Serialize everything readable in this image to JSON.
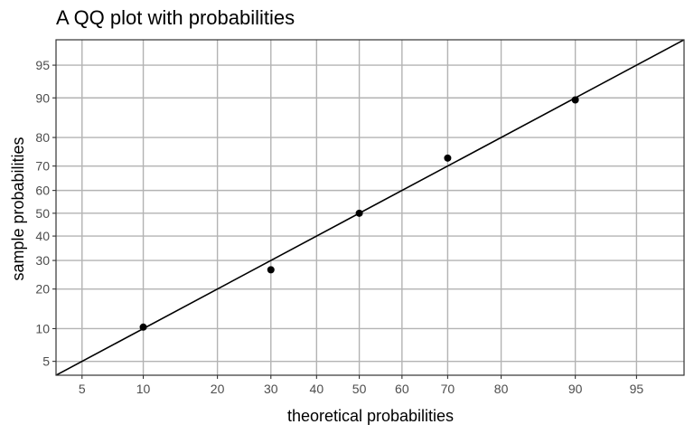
{
  "chart_data": {
    "type": "scatter",
    "title": "A QQ plot with probabilities",
    "xlabel": "theoretical probabilities",
    "ylabel": "sample probabilities",
    "scale": "probit",
    "x_ticks": [
      5,
      10,
      20,
      30,
      40,
      50,
      60,
      70,
      80,
      90,
      95
    ],
    "y_ticks": [
      5,
      10,
      20,
      30,
      40,
      50,
      60,
      70,
      80,
      90,
      95
    ],
    "xlim": [
      3.6,
      97.3
    ],
    "ylim": [
      3.6,
      97.3
    ],
    "points": [
      {
        "x": 10,
        "y": 10.3
      },
      {
        "x": 30,
        "y": 26.5
      },
      {
        "x": 50,
        "y": 50
      },
      {
        "x": 70,
        "y": 73
      },
      {
        "x": 90,
        "y": 89.6
      }
    ],
    "reference_line": {
      "slope": 1,
      "intercept": 0
    },
    "grid": true,
    "legend": "none",
    "colors": {
      "points": "#000000",
      "line": "#000000",
      "grid": "#b3b3b3",
      "panel_border": "#333333",
      "tick_text": "#4d4d4d"
    }
  }
}
